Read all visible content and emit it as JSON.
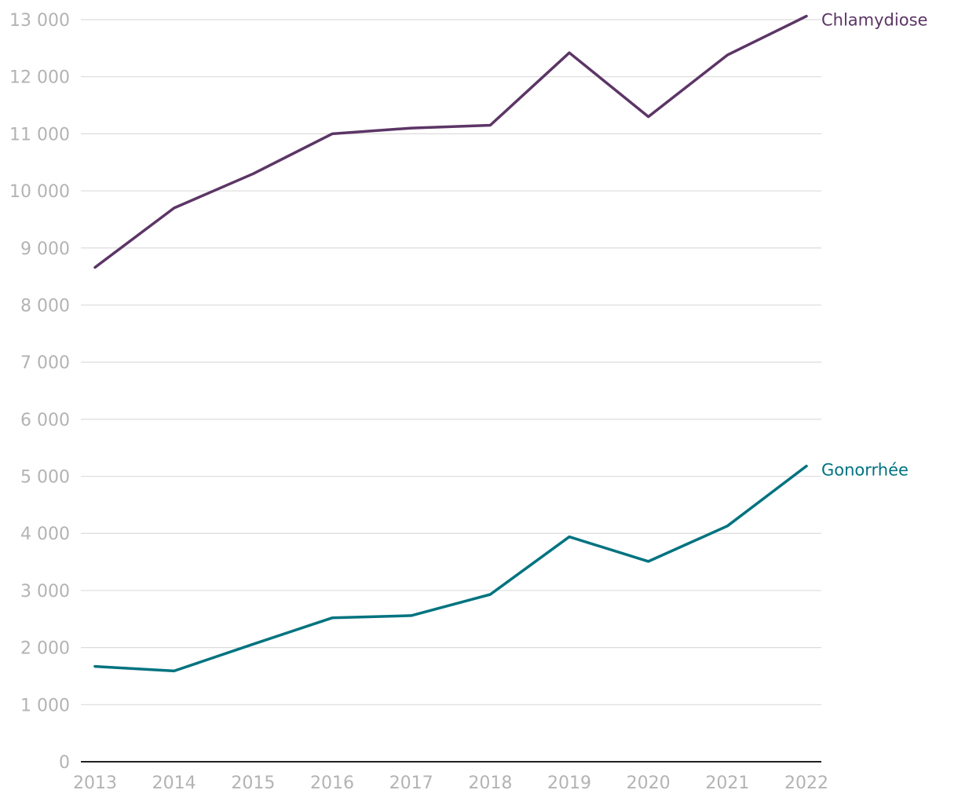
{
  "chart_data": {
    "type": "line",
    "title": "",
    "xlabel": "",
    "ylabel": "",
    "x": [
      2013,
      2014,
      2015,
      2016,
      2017,
      2018,
      2019,
      2020,
      2021,
      2022
    ],
    "x_tick_labels": [
      "2013",
      "2014",
      "2015",
      "2016",
      "2017",
      "2018",
      "2019",
      "2020",
      "2021",
      "2022"
    ],
    "ylim": [
      0,
      13000
    ],
    "y_ticks": [
      0,
      1000,
      2000,
      3000,
      4000,
      5000,
      6000,
      7000,
      8000,
      9000,
      10000,
      11000,
      12000,
      13000
    ],
    "y_tick_labels": [
      "0",
      "1 000",
      "2 000",
      "3 000",
      "4 000",
      "5 000",
      "6 000",
      "7 000",
      "8 000",
      "9 000",
      "10 000",
      "11 000",
      "12 000",
      "13 000"
    ],
    "grid": true,
    "legend": "direct labels at line ends",
    "series": [
      {
        "name": "Chlamydiose",
        "color": "#5c3566",
        "values": [
          8660,
          9700,
          10300,
          11000,
          11100,
          11150,
          12420,
          11300,
          12380,
          13060
        ]
      },
      {
        "name": "Gonorrhée",
        "color": "#007380",
        "values": [
          1670,
          1590,
          2060,
          2520,
          2560,
          2930,
          3940,
          3510,
          4130,
          5180
        ]
      }
    ]
  }
}
